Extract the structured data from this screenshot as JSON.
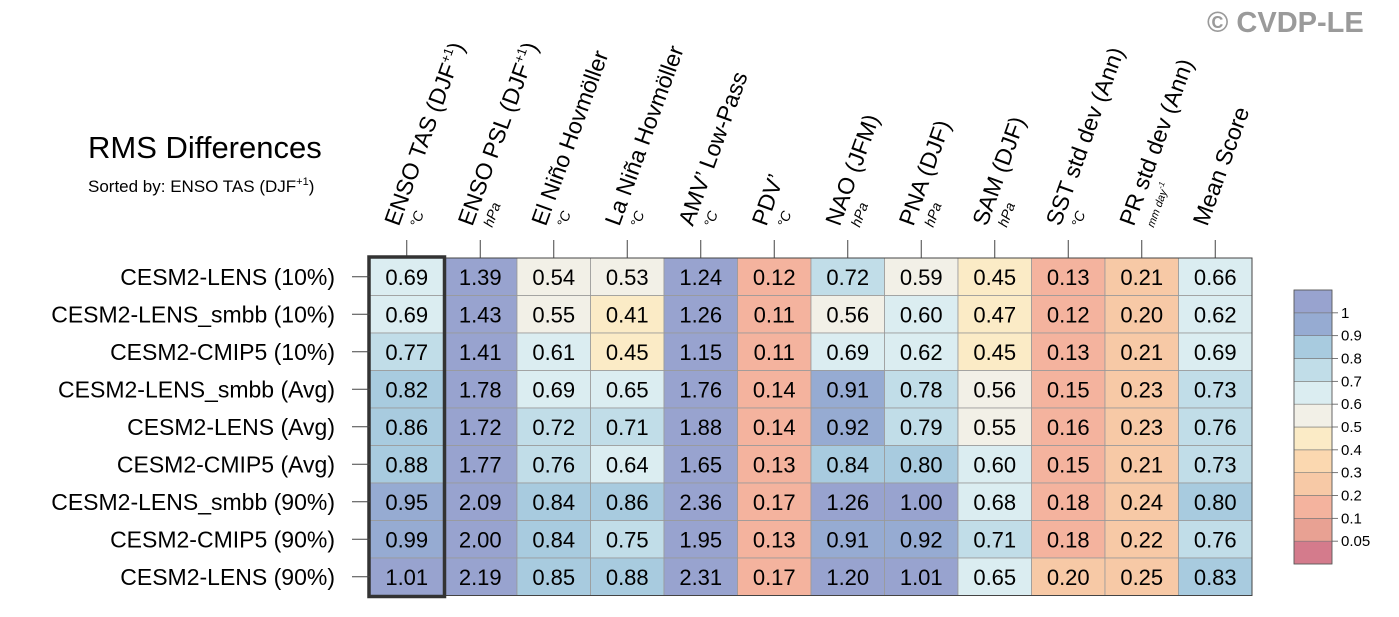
{
  "watermark": "© CVDP-LE",
  "chart_data": {
    "type": "heatmap",
    "title": "RMS Differences",
    "subtitle": "Sorted by: ENSO TAS (DJF+1)",
    "columns": [
      {
        "label": "ENSO TAS (DJF+1)",
        "unit": "°C"
      },
      {
        "label": "ENSO PSL (DJF+1)",
        "unit": "hPa"
      },
      {
        "label": "El Niño Hovmöller",
        "unit": "°C"
      },
      {
        "label": "La Niña Hovmöller",
        "unit": "°C"
      },
      {
        "label": "AMV’ Low-Pass",
        "unit": "°C"
      },
      {
        "label": "PDV’",
        "unit": "°C"
      },
      {
        "label": "NAO (JFM)",
        "unit": "hPa"
      },
      {
        "label": "PNA (DJF)",
        "unit": "hPa"
      },
      {
        "label": "SAM (DJF)",
        "unit": "hPa"
      },
      {
        "label": "SST std dev (Ann)",
        "unit": "°C"
      },
      {
        "label": "PR std dev (Ann)",
        "unit": "mm day-1"
      },
      {
        "label": "Mean Score",
        "unit": ""
      }
    ],
    "rows": [
      {
        "label": "CESM2-LENS (10%)",
        "values": [
          "0.69",
          "1.39",
          "0.54",
          "0.53",
          "1.24",
          "0.12",
          "0.72",
          "0.59",
          "0.45",
          "0.13",
          "0.21",
          "0.66"
        ]
      },
      {
        "label": "CESM2-LENS_smbb (10%)",
        "values": [
          "0.69",
          "1.43",
          "0.55",
          "0.41",
          "1.26",
          "0.11",
          "0.56",
          "0.60",
          "0.47",
          "0.12",
          "0.20",
          "0.62"
        ]
      },
      {
        "label": "CESM2-CMIP5 (10%)",
        "values": [
          "0.77",
          "1.41",
          "0.61",
          "0.45",
          "1.15",
          "0.11",
          "0.69",
          "0.62",
          "0.45",
          "0.13",
          "0.21",
          "0.69"
        ]
      },
      {
        "label": "CESM2-LENS_smbb (Avg)",
        "values": [
          "0.82",
          "1.78",
          "0.69",
          "0.65",
          "1.76",
          "0.14",
          "0.91",
          "0.78",
          "0.56",
          "0.15",
          "0.23",
          "0.73"
        ]
      },
      {
        "label": "CESM2-LENS (Avg)",
        "values": [
          "0.86",
          "1.72",
          "0.72",
          "0.71",
          "1.88",
          "0.14",
          "0.92",
          "0.79",
          "0.55",
          "0.16",
          "0.23",
          "0.76"
        ]
      },
      {
        "label": "CESM2-CMIP5 (Avg)",
        "values": [
          "0.88",
          "1.77",
          "0.76",
          "0.64",
          "1.65",
          "0.13",
          "0.84",
          "0.80",
          "0.60",
          "0.15",
          "0.21",
          "0.73"
        ]
      },
      {
        "label": "CESM2-LENS_smbb (90%)",
        "values": [
          "0.95",
          "2.09",
          "0.84",
          "0.86",
          "2.36",
          "0.17",
          "1.26",
          "1.00",
          "0.68",
          "0.18",
          "0.24",
          "0.80"
        ]
      },
      {
        "label": "CESM2-CMIP5 (90%)",
        "values": [
          "0.99",
          "2.00",
          "0.84",
          "0.75",
          "1.95",
          "0.13",
          "0.91",
          "0.92",
          "0.71",
          "0.18",
          "0.22",
          "0.76"
        ]
      },
      {
        "label": "CESM2-LENS (90%)",
        "values": [
          "1.01",
          "2.19",
          "0.85",
          "0.88",
          "2.31",
          "0.17",
          "1.20",
          "1.01",
          "0.65",
          "0.20",
          "0.25",
          "0.83"
        ]
      }
    ],
    "highlighted_column": "ENSO TAS (DJF+1)",
    "colorbar": {
      "levels": [
        "0.05",
        "0.1",
        "0.2",
        "0.3",
        "0.4",
        "0.5",
        "0.6",
        "0.7",
        "0.8",
        "0.9",
        "1"
      ],
      "colors": [
        "#d47b8c",
        "#e8a193",
        "#f4b39e",
        "#f7c9a6",
        "#fbd8b0",
        "#fbebc6",
        "#f2f0e7",
        "#dbedf1",
        "#c1dde8",
        "#a8cbdf",
        "#96abd2",
        "#98a3cf"
      ]
    }
  }
}
